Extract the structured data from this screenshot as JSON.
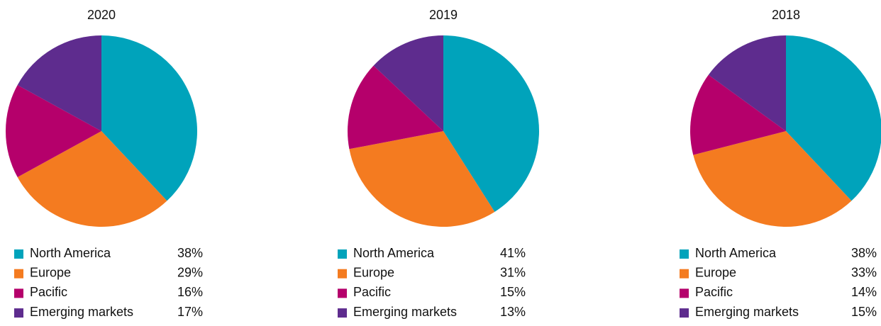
{
  "chart_data": [
    {
      "type": "pie",
      "title": "2020",
      "categories": [
        "North America",
        "Europe",
        "Pacific",
        "Emerging markets"
      ],
      "values": [
        38,
        29,
        16,
        17
      ],
      "value_labels": [
        "38%",
        "29%",
        "16%",
        "17%"
      ],
      "colors": [
        "#00a3bb",
        "#f47b20",
        "#b5006b",
        "#5e2c8e"
      ]
    },
    {
      "type": "pie",
      "title": "2019",
      "categories": [
        "North America",
        "Europe",
        "Pacific",
        "Emerging markets"
      ],
      "values": [
        41,
        31,
        15,
        13
      ],
      "value_labels": [
        "41%",
        "31%",
        "15%",
        "13%"
      ],
      "colors": [
        "#00a3bb",
        "#f47b20",
        "#b5006b",
        "#5e2c8e"
      ]
    },
    {
      "type": "pie",
      "title": "2018",
      "categories": [
        "North America",
        "Europe",
        "Pacific",
        "Emerging markets"
      ],
      "values": [
        38,
        33,
        14,
        15
      ],
      "value_labels": [
        "38%",
        "33%",
        "14%",
        "15%"
      ],
      "colors": [
        "#00a3bb",
        "#f47b20",
        "#b5006b",
        "#5e2c8e"
      ]
    }
  ]
}
